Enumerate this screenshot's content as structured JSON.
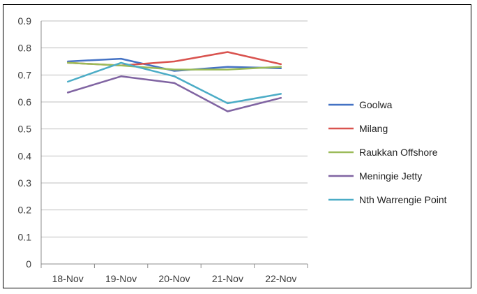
{
  "chart_data": {
    "type": "line",
    "title": "",
    "xlabel": "",
    "ylabel": "",
    "categories": [
      "18-Nov",
      "19-Nov",
      "20-Nov",
      "21-Nov",
      "22-Nov"
    ],
    "ylim": [
      0,
      0.9
    ],
    "yticks": [
      "0",
      "0.1",
      "0.2",
      "0.3",
      "0.4",
      "0.5",
      "0.6",
      "0.7",
      "0.8",
      "0.9"
    ],
    "grid": true,
    "legend_position": "right",
    "series": [
      {
        "name": "Goolwa",
        "color": "#4472c4",
        "values": [
          0.75,
          0.76,
          0.715,
          0.73,
          0.725
        ]
      },
      {
        "name": "Milang",
        "color": "#d9534f",
        "values": [
          0.745,
          0.735,
          0.75,
          0.785,
          0.74
        ]
      },
      {
        "name": "Raukkan Offshore",
        "color": "#9bbb59",
        "values": [
          0.745,
          0.735,
          0.72,
          0.72,
          0.73
        ]
      },
      {
        "name": "Meningie Jetty",
        "color": "#8064a2",
        "values": [
          0.635,
          0.695,
          0.67,
          0.565,
          0.615
        ]
      },
      {
        "name": "Nth Warrengie Point",
        "color": "#4bacc6",
        "values": [
          0.675,
          0.745,
          0.695,
          0.595,
          0.63
        ]
      }
    ]
  }
}
